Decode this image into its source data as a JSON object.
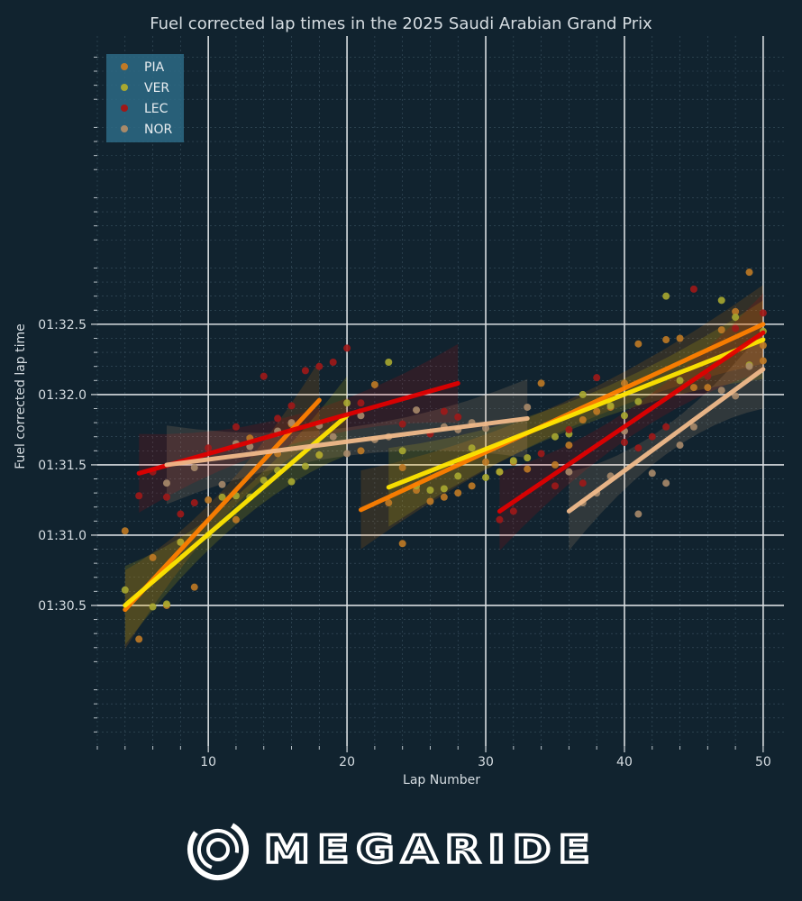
{
  "chart_data": {
    "type": "scatter",
    "title": "Fuel corrected lap times in the 2025 Saudi Arabian Grand Prix",
    "xlabel": "Lap Number",
    "ylabel": "Fuel corrected lap time",
    "xlim": [
      2,
      51.5
    ],
    "ylim": [
      89.5,
      94.55
    ],
    "x_ticks": [
      10,
      20,
      30,
      40,
      50
    ],
    "x_tick_labels": [
      "10",
      "20",
      "30",
      "40",
      "50"
    ],
    "y_ticks": [
      90.5,
      91.0,
      91.5,
      92.0,
      92.5
    ],
    "y_tick_labels": [
      "01:30.5",
      "01:31.0",
      "01:31.5",
      "01:32.0",
      "01:32.5"
    ],
    "grid": true,
    "legend_position": "top-left",
    "series": [
      {
        "name": "PIA",
        "marker_color": "#c07a25",
        "line_color": "#ff8000",
        "points": [
          [
            4,
            91.03
          ],
          [
            5,
            90.26
          ],
          [
            6,
            90.84
          ],
          [
            7,
            90.5
          ],
          [
            8,
            90.95
          ],
          [
            9,
            90.63
          ],
          [
            10,
            91.25
          ],
          [
            12,
            91.11
          ],
          [
            13,
            91.69
          ],
          [
            15,
            91.58
          ],
          [
            16,
            91.79
          ],
          [
            18,
            91.57
          ],
          [
            21,
            91.6
          ],
          [
            22,
            92.07
          ],
          [
            23,
            91.23
          ],
          [
            24,
            90.94
          ],
          [
            24,
            91.48
          ],
          [
            25,
            91.32
          ],
          [
            26,
            91.24
          ],
          [
            27,
            91.27
          ],
          [
            28,
            91.3
          ],
          [
            29,
            91.35
          ],
          [
            30,
            91.52
          ],
          [
            31,
            91.45
          ],
          [
            32,
            91.52
          ],
          [
            33,
            91.47
          ],
          [
            34,
            92.08
          ],
          [
            35,
            91.5
          ],
          [
            36,
            91.64
          ],
          [
            37,
            91.82
          ],
          [
            38,
            91.88
          ],
          [
            39,
            91.91
          ],
          [
            40,
            92.08
          ],
          [
            41,
            92.36
          ],
          [
            43,
            92.39
          ],
          [
            44,
            92.4
          ],
          [
            45,
            92.05
          ],
          [
            46,
            92.05
          ],
          [
            47,
            92.46
          ],
          [
            48,
            92.59
          ],
          [
            49,
            92.87
          ],
          [
            50,
            92.24
          ],
          [
            50,
            92.35
          ]
        ],
        "trend_segments": [
          {
            "x": [
              4,
              18
            ],
            "y": [
              90.47,
              91.96
            ]
          },
          {
            "x": [
              21,
              50
            ],
            "y": [
              91.18,
              92.5
            ]
          }
        ]
      },
      {
        "name": "VER",
        "marker_color": "#a8a830",
        "line_color": "#ffe600",
        "points": [
          [
            4,
            90.61
          ],
          [
            6,
            90.49
          ],
          [
            7,
            90.51
          ],
          [
            8,
            90.95
          ],
          [
            10,
            91.0
          ],
          [
            11,
            91.27
          ],
          [
            12,
            91.28
          ],
          [
            13,
            91.27
          ],
          [
            14,
            91.39
          ],
          [
            15,
            91.46
          ],
          [
            16,
            91.38
          ],
          [
            17,
            91.49
          ],
          [
            18,
            91.57
          ],
          [
            20,
            91.94
          ],
          [
            23,
            92.23
          ],
          [
            24,
            91.6
          ],
          [
            25,
            91.35
          ],
          [
            26,
            91.32
          ],
          [
            27,
            91.33
          ],
          [
            28,
            91.42
          ],
          [
            29,
            91.62
          ],
          [
            30,
            91.41
          ],
          [
            31,
            91.45
          ],
          [
            32,
            91.53
          ],
          [
            33,
            91.55
          ],
          [
            35,
            91.7
          ],
          [
            36,
            91.72
          ],
          [
            37,
            92.0
          ],
          [
            39,
            91.92
          ],
          [
            40,
            91.85
          ],
          [
            41,
            91.95
          ],
          [
            43,
            92.7
          ],
          [
            44,
            92.1
          ],
          [
            47,
            92.67
          ],
          [
            48,
            92.55
          ],
          [
            49,
            92.21
          ],
          [
            50,
            92.45
          ]
        ],
        "trend_segments": [
          {
            "x": [
              4,
              20
            ],
            "y": [
              90.5,
              91.85
            ]
          },
          {
            "x": [
              23,
              50
            ],
            "y": [
              91.34,
              92.39
            ]
          }
        ]
      },
      {
        "name": "LEC",
        "marker_color": "#a01818",
        "line_color": "#e00000",
        "points": [
          [
            5,
            91.28
          ],
          [
            6,
            91.45
          ],
          [
            7,
            91.27
          ],
          [
            8,
            91.15
          ],
          [
            9,
            91.23
          ],
          [
            10,
            91.62
          ],
          [
            12,
            91.77
          ],
          [
            14,
            92.13
          ],
          [
            15,
            91.83
          ],
          [
            16,
            91.92
          ],
          [
            17,
            92.17
          ],
          [
            18,
            92.2
          ],
          [
            19,
            92.23
          ],
          [
            20,
            92.33
          ],
          [
            21,
            91.94
          ],
          [
            24,
            91.79
          ],
          [
            26,
            91.72
          ],
          [
            27,
            91.88
          ],
          [
            28,
            91.84
          ],
          [
            31,
            91.11
          ],
          [
            32,
            91.17
          ],
          [
            34,
            91.58
          ],
          [
            35,
            91.35
          ],
          [
            36,
            91.75
          ],
          [
            37,
            91.37
          ],
          [
            38,
            92.12
          ],
          [
            40,
            91.66
          ],
          [
            41,
            91.62
          ],
          [
            42,
            91.7
          ],
          [
            43,
            91.77
          ],
          [
            45,
            92.75
          ],
          [
            46,
            92.13
          ],
          [
            48,
            92.47
          ],
          [
            50,
            92.58
          ]
        ],
        "trend_segments": [
          {
            "x": [
              5,
              28
            ],
            "y": [
              91.44,
              92.08
            ]
          },
          {
            "x": [
              31,
              50
            ],
            "y": [
              91.17,
              92.44
            ]
          }
        ]
      },
      {
        "name": "NOR",
        "marker_color": "#a88a6a",
        "line_color": "#f0b98a",
        "points": [
          [
            7,
            91.37
          ],
          [
            9,
            91.48
          ],
          [
            11,
            91.36
          ],
          [
            12,
            91.65
          ],
          [
            13,
            91.63
          ],
          [
            15,
            91.74
          ],
          [
            16,
            91.8
          ],
          [
            18,
            91.78
          ],
          [
            19,
            91.7
          ],
          [
            20,
            91.58
          ],
          [
            21,
            91.85
          ],
          [
            22,
            91.68
          ],
          [
            23,
            91.7
          ],
          [
            25,
            91.89
          ],
          [
            27,
            91.77
          ],
          [
            28,
            91.75
          ],
          [
            29,
            91.8
          ],
          [
            30,
            91.76
          ],
          [
            33,
            91.91
          ],
          [
            36,
            91.45
          ],
          [
            37,
            91.23
          ],
          [
            38,
            91.3
          ],
          [
            39,
            91.42
          ],
          [
            40,
            91.74
          ],
          [
            41,
            91.15
          ],
          [
            42,
            91.44
          ],
          [
            43,
            91.37
          ],
          [
            44,
            91.64
          ],
          [
            45,
            91.77
          ],
          [
            47,
            92.03
          ],
          [
            48,
            91.99
          ],
          [
            49,
            92.2
          ]
        ],
        "trend_segments": [
          {
            "x": [
              7,
              33
            ],
            "y": [
              91.5,
              91.83
            ]
          },
          {
            "x": [
              36,
              50
            ],
            "y": [
              91.17,
              92.18
            ]
          }
        ]
      }
    ]
  },
  "branding": {
    "wordmark": "MEGARIDE",
    "logo_icon": "megaride-ring-logo"
  },
  "colors": {
    "background": "#11232f",
    "grid_major": "#d8dde0",
    "grid_minor": "#3a5260",
    "text": "#d6dde2",
    "legend_bg": "#2d6a85"
  }
}
